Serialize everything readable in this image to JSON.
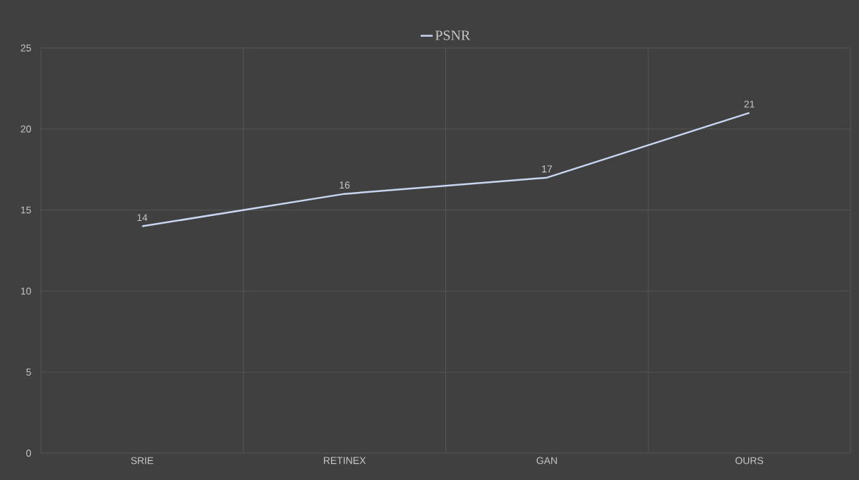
{
  "chart_data": {
    "type": "line",
    "categories": [
      "SRIE",
      "RETINEX",
      "GAN",
      "OURS"
    ],
    "series": [
      {
        "name": "PSNR",
        "color": "#c9d6f2",
        "values": [
          14,
          16,
          17,
          21
        ]
      }
    ],
    "ylim": [
      0,
      25
    ],
    "yticks": [
      0,
      5,
      10,
      15,
      20,
      25
    ],
    "grid": true,
    "legend": "top",
    "data_labels": true,
    "marker": "none",
    "line_style": "solid"
  }
}
